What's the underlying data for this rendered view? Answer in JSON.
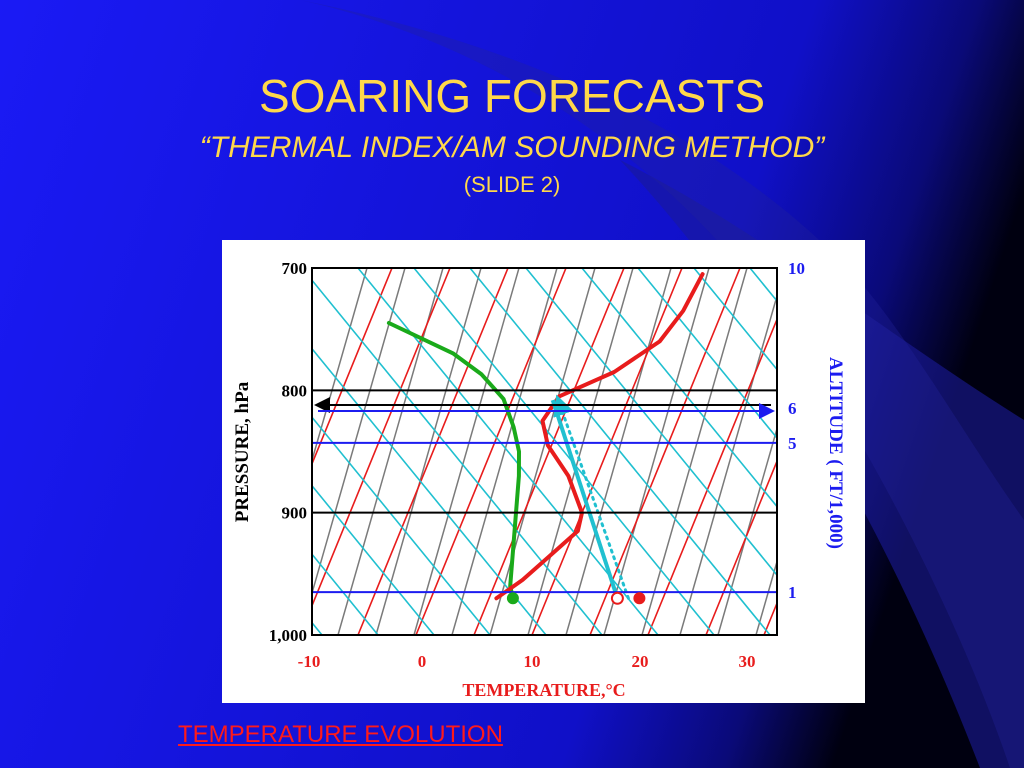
{
  "slide": {
    "title": "SOARING FORECASTS",
    "subtitle": "“THERMAL INDEX/AM SOUNDING METHOD”",
    "slide_number": "(SLIDE 2)",
    "link_text": "TEMPERATURE EVOLUTION",
    "colors": {
      "background": "#1414e8",
      "title": "#ffd84a",
      "link": "#ff1a1a"
    }
  },
  "chart_data": {
    "type": "line",
    "xlabel": "TEMPERATURE,°C",
    "ylabel": "PRESSURE, hPa",
    "y2label": "ALTITUDE ( FT/1,000)",
    "x_ticks": [
      "-10",
      "0",
      "10",
      "20",
      "30"
    ],
    "y_ticks": [
      "700",
      "800",
      "900",
      "1,000"
    ],
    "y2_ticks": [
      "10",
      "6",
      "5",
      "1"
    ],
    "skewed_axes": true,
    "background_lines": [
      "isotherms",
      "dry adiabats",
      "mixing ratio lines"
    ],
    "series": [
      {
        "name": "dewpoint",
        "color": "#1aaa1a",
        "points": [
          [
            -9.5,
            745
          ],
          [
            -3,
            770
          ],
          [
            0,
            787
          ],
          [
            2.5,
            807
          ],
          [
            4,
            830
          ],
          [
            5,
            850
          ],
          [
            5.5,
            870
          ],
          [
            6,
            900
          ],
          [
            6.5,
            930
          ],
          [
            7,
            960
          ],
          [
            7.5,
            970
          ]
        ]
      },
      {
        "name": "temperature",
        "color": "#e81c1c",
        "points": [
          [
            6,
            970
          ],
          [
            8,
            955
          ],
          [
            10,
            935
          ],
          [
            12,
            915
          ],
          [
            12,
            900
          ],
          [
            10,
            870
          ],
          [
            7.5,
            845
          ],
          [
            6.5,
            825
          ],
          [
            7.5,
            805
          ],
          [
            12,
            785
          ],
          [
            15.5,
            760
          ],
          [
            17,
            735
          ],
          [
            18,
            705
          ]
        ]
      }
    ],
    "surface_dewpoint": {
      "temp": 7.5,
      "pressure": 970
    },
    "surface_temp": {
      "temp": 19,
      "pressure": 970
    },
    "forecast_max_temp": {
      "temp": 17,
      "pressure": 970
    },
    "dry_adiabat_parcel": {
      "from": [
        17,
        970
      ],
      "to": [
        7,
        808
      ]
    },
    "dry_adiabat_parcel_dotted": {
      "from": [
        18,
        970
      ],
      "to": [
        7.5,
        808
      ]
    },
    "altitude_lines": [
      {
        "label": "10",
        "pressure": 700,
        "color": "#1c1cf0"
      },
      {
        "label": "6",
        "pressure": 812,
        "color": "#1c1cf0",
        "arrow": true
      },
      {
        "label": "5",
        "pressure": 843,
        "color": "#1c1cf0"
      },
      {
        "label": "1",
        "pressure": 965,
        "color": "#1c1cf0"
      }
    ],
    "pressure_lines": [
      700,
      800,
      900,
      1000
    ]
  }
}
